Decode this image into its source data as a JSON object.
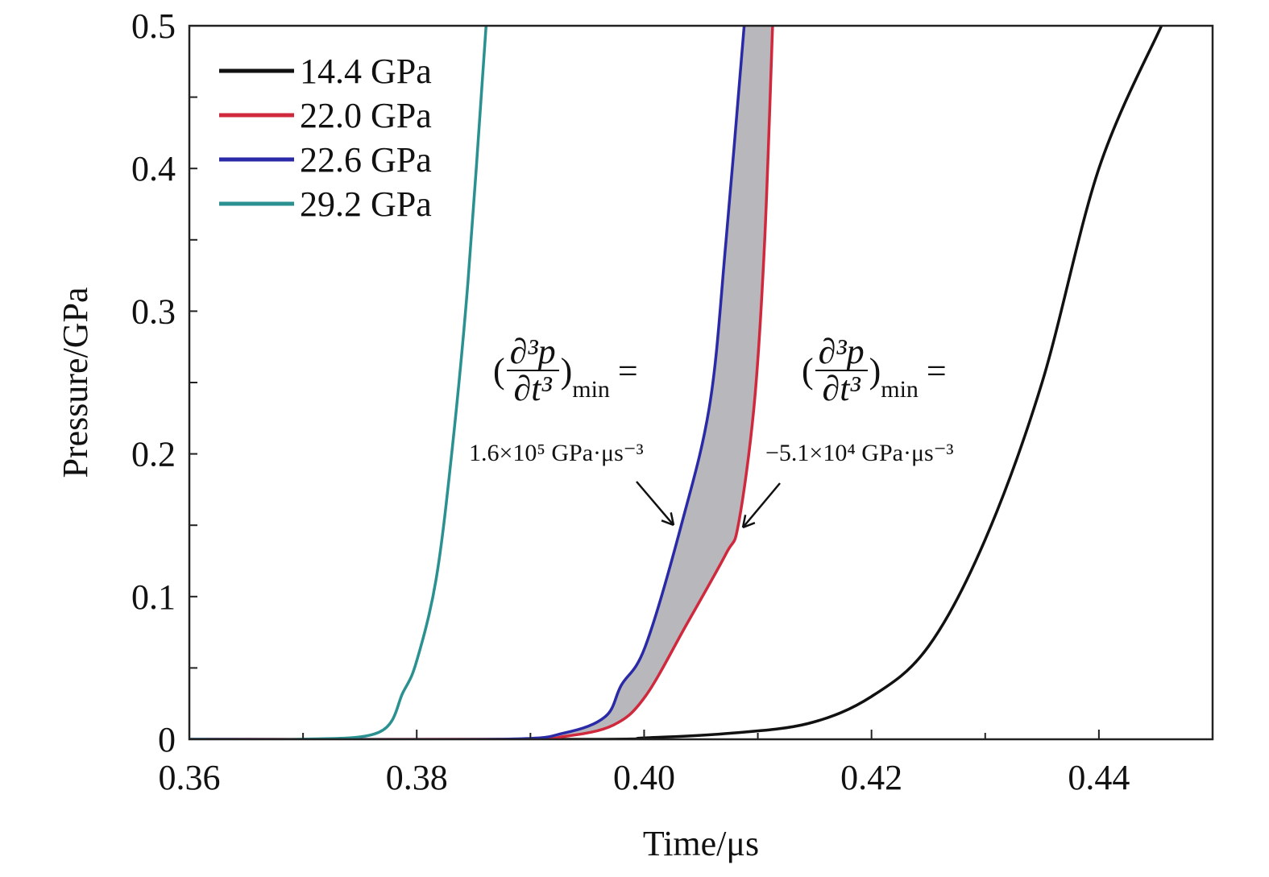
{
  "chart_data": {
    "type": "line",
    "title": "",
    "xlabel": "Time/μs",
    "ylabel": "Pressure/GPa",
    "xlim": [
      0.36,
      0.45
    ],
    "ylim": [
      0,
      0.5
    ],
    "xticks": [
      "0.36",
      "0.38",
      "0.40",
      "0.42",
      "0.44"
    ],
    "xtick_values": [
      0.36,
      0.38,
      0.4,
      0.42,
      0.44
    ],
    "yticks": [
      "0",
      "0.1",
      "0.2",
      "0.3",
      "0.4",
      "0.5"
    ],
    "ytick_values": [
      0,
      0.1,
      0.2,
      0.3,
      0.4,
      0.5
    ],
    "grid": false,
    "legend_position": "top-left",
    "series": [
      {
        "name": "14.4 GPa",
        "color": "#111111",
        "x": [
          0.36,
          0.395,
          0.4001,
          0.4072,
          0.4144,
          0.42,
          0.425,
          0.43,
          0.435,
          0.44,
          0.4455
        ],
        "y": [
          0,
          0,
          0.001,
          0.004,
          0.011,
          0.03,
          0.065,
          0.14,
          0.25,
          0.4,
          0.5
        ]
      },
      {
        "name": "22.0 GPa",
        "color": "#d0283c",
        "x": [
          0.36,
          0.388,
          0.393,
          0.3973,
          0.4001,
          0.4037,
          0.4072,
          0.4083,
          0.4097,
          0.4106,
          0.4113
        ],
        "y": [
          0,
          0,
          0.002,
          0.01,
          0.03,
          0.08,
          0.13,
          0.151,
          0.236,
          0.349,
          0.5
        ]
      },
      {
        "name": "22.6 GPa",
        "color": "#2a2aa8",
        "x": [
          0.36,
          0.387,
          0.393,
          0.3966,
          0.398,
          0.4001,
          0.4033,
          0.4058,
          0.4072,
          0.4088
        ],
        "y": [
          0,
          0,
          0.0045,
          0.016,
          0.038,
          0.065,
          0.151,
          0.236,
          0.349,
          0.5
        ]
      },
      {
        "name": "29.2 GPa",
        "color": "#2a9090",
        "x": [
          0.36,
          0.3696,
          0.3767,
          0.3788,
          0.38,
          0.3817,
          0.3831,
          0.3845,
          0.3861
        ],
        "y": [
          0,
          0,
          0.005,
          0.033,
          0.055,
          0.112,
          0.202,
          0.32,
          0.5
        ]
      }
    ],
    "shaded_region": {
      "between": [
        "22.6 GPa",
        "22.0 GPa"
      ],
      "color": "#b8b8bc"
    },
    "annotations": [
      {
        "prefix": "(",
        "numerator": "∂³p",
        "denominator": "∂t³",
        "suffix": ")",
        "subscript": "min",
        "equals": "=",
        "value": "1.6×10⁵ GPa·μs⁻³",
        "target_series": "22.6 GPa"
      },
      {
        "prefix": "(",
        "numerator": "∂³p",
        "denominator": "∂t³",
        "suffix": ")",
        "subscript": "min",
        "equals": "=",
        "value": "−5.1×10⁴ GPa·μs⁻³",
        "target_series": "22.0 GPa"
      }
    ]
  }
}
